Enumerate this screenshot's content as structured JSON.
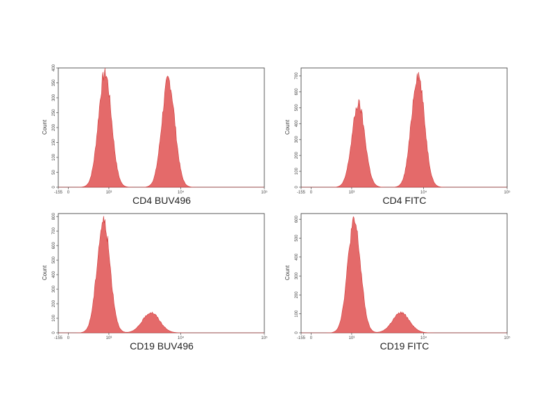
{
  "chart_data": [
    {
      "type": "area",
      "xlabel": "CD4 BUV496",
      "ylabel": "Count",
      "x_ticks": [
        "-155",
        "0",
        "10³",
        "10⁴",
        "10⁵"
      ],
      "x_tick_positions": [
        -155,
        0,
        1000,
        10000,
        100000
      ],
      "y_ticks": [
        "0",
        "50",
        "100",
        "150",
        "200",
        "250",
        "300",
        "350",
        "400"
      ],
      "ylim": [
        0,
        400
      ],
      "color": "#e05555",
      "peaks": [
        {
          "center": 850,
          "height": 400
        },
        {
          "center": 7000,
          "height": 375
        }
      ]
    },
    {
      "type": "area",
      "xlabel": "CD4 FITC",
      "ylabel": "Count",
      "x_ticks": [
        "-155",
        "0",
        "10³",
        "10⁴",
        "10⁵"
      ],
      "x_tick_positions": [
        -155,
        0,
        1000,
        10000,
        100000
      ],
      "y_ticks": [
        "0",
        "100",
        "200",
        "300",
        "400",
        "500",
        "600",
        "700"
      ],
      "ylim": [
        0,
        750
      ],
      "color": "#e05555",
      "peaks": [
        {
          "center": 1300,
          "height": 545
        },
        {
          "center": 8500,
          "height": 740
        }
      ]
    },
    {
      "type": "area",
      "xlabel": "CD19 BUV496",
      "ylabel": "Count",
      "x_ticks": [
        "-155",
        "0",
        "10³",
        "10⁴",
        "10⁵"
      ],
      "x_tick_positions": [
        -155,
        0,
        1000,
        10000,
        100000
      ],
      "y_ticks": [
        "0",
        "100",
        "200",
        "300",
        "400",
        "500",
        "600",
        "700",
        "800"
      ],
      "ylim": [
        0,
        820
      ],
      "color": "#e05555",
      "peaks": [
        {
          "center": 800,
          "height": 800
        },
        {
          "center": 4200,
          "height": 145
        }
      ]
    },
    {
      "type": "area",
      "xlabel": "CD19 FITC",
      "ylabel": "Count",
      "x_ticks": [
        "-155",
        "0",
        "10³",
        "10⁴",
        "10⁵"
      ],
      "x_tick_positions": [
        -155,
        0,
        1000,
        10000,
        100000
      ],
      "y_ticks": [
        "0",
        "100",
        "200",
        "300",
        "400",
        "500",
        "600"
      ],
      "ylim": [
        0,
        630
      ],
      "color": "#e05555",
      "peaks": [
        {
          "center": 1100,
          "height": 610
        },
        {
          "center": 5200,
          "height": 110
        }
      ]
    }
  ]
}
